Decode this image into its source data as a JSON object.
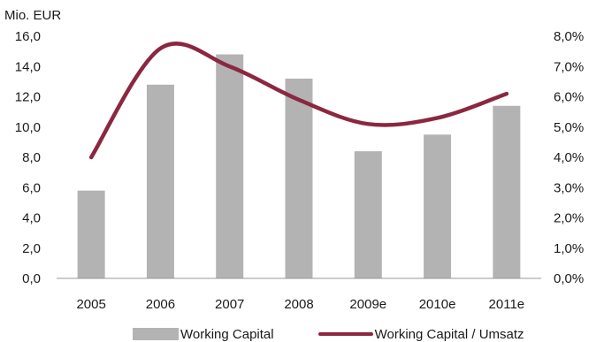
{
  "chart_data": {
    "type": "bar+line",
    "unit_label": "Mio. EUR",
    "categories": [
      "2005",
      "2006",
      "2007",
      "2008",
      "2009e",
      "2010e",
      "2011e"
    ],
    "series": [
      {
        "name": "Working Capital",
        "type": "bar",
        "axis": "left",
        "values": [
          5.8,
          12.8,
          14.8,
          13.2,
          8.4,
          9.5,
          11.4
        ],
        "color": "#b3b3b3"
      },
      {
        "name": "Working Capital / Umsatz",
        "type": "line",
        "axis": "right",
        "values": [
          4.0,
          7.6,
          7.0,
          5.9,
          5.1,
          5.3,
          6.1
        ],
        "color": "#8b2740"
      }
    ],
    "y_left": {
      "min": 0,
      "max": 16,
      "step": 2,
      "tick_labels": [
        "0,0",
        "2,0",
        "4,0",
        "6,0",
        "8,0",
        "10,0",
        "12,0",
        "14,0",
        "16,0"
      ]
    },
    "y_right": {
      "min": 0,
      "max": 8,
      "step": 1,
      "tick_labels": [
        "0,0%",
        "1,0%",
        "2,0%",
        "3,0%",
        "4,0%",
        "5,0%",
        "6,0%",
        "7,0%",
        "8,0%"
      ]
    },
    "grid": false,
    "legend_position": "bottom"
  }
}
